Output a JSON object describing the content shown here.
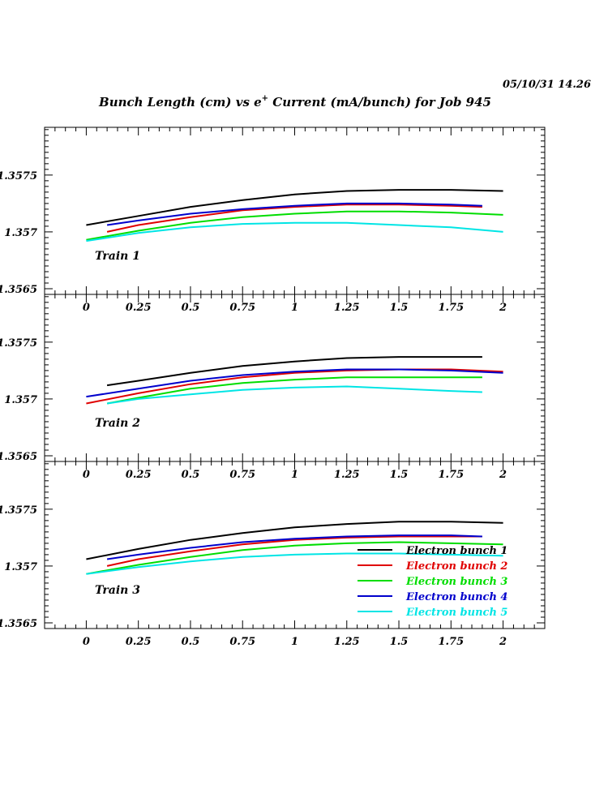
{
  "header": {
    "timestamp": "05/10/31   14.26",
    "title_part1": "Bunch Length (cm) vs e",
    "title_sup": "+",
    "title_part2": " Current (mA/bunch) for Job 945"
  },
  "chart_data": {
    "type": "line",
    "title": "Bunch Length (cm) vs e+ Current (mA/bunch) for Job 945",
    "xlabel": "",
    "ylabel": "",
    "xlim": [
      -0.2,
      2.2
    ],
    "ylim": [
      1.35645,
      1.35792
    ],
    "x_ticks": [
      0,
      0.25,
      0.5,
      0.75,
      1,
      1.25,
      1.5,
      1.75,
      2
    ],
    "x_tick_labels": [
      "0",
      "0.25",
      "0.5",
      "0.75",
      "1",
      "1.25",
      "1.5",
      "1.75",
      "2"
    ],
    "y_ticks": [
      1.3565,
      1.357,
      1.3575
    ],
    "y_tick_labels": [
      "1.3565",
      "1.357",
      "1.3575"
    ],
    "grid": false,
    "legend_placement": "bottom-right of lowest panel",
    "colors": [
      "#000000",
      "#e00000",
      "#00dd00",
      "#0000cc",
      "#00e5e5"
    ],
    "legend": [
      "Electron bunch 1",
      "Electron bunch 2",
      "Electron bunch 3",
      "Electron bunch 4",
      "Electron bunch 5"
    ],
    "panels": [
      {
        "label": "Train 1",
        "series": [
          {
            "name": "Electron bunch 1",
            "x": [
              0,
              0.25,
              0.5,
              0.75,
              1,
              1.25,
              1.5,
              1.75,
              2
            ],
            "y": [
              1.35706,
              1.35714,
              1.35722,
              1.35728,
              1.35733,
              1.35736,
              1.35737,
              1.35737,
              1.35736
            ]
          },
          {
            "name": "Electron bunch 2",
            "x": [
              0.1,
              0.25,
              0.5,
              0.75,
              1,
              1.25,
              1.5,
              1.75,
              1.9
            ],
            "y": [
              1.357,
              1.35706,
              1.35713,
              1.35719,
              1.35722,
              1.35724,
              1.35724,
              1.35723,
              1.35722
            ]
          },
          {
            "name": "Electron bunch 3",
            "x": [
              0,
              0.25,
              0.5,
              0.75,
              1,
              1.25,
              1.5,
              1.75,
              2
            ],
            "y": [
              1.35693,
              1.35701,
              1.35708,
              1.35713,
              1.35716,
              1.35718,
              1.35718,
              1.35717,
              1.35715
            ]
          },
          {
            "name": "Electron bunch 4",
            "x": [
              0.1,
              0.25,
              0.5,
              0.75,
              1,
              1.25,
              1.5,
              1.75,
              1.9
            ],
            "y": [
              1.35706,
              1.3571,
              1.35716,
              1.3572,
              1.35723,
              1.35725,
              1.35725,
              1.35724,
              1.35723
            ]
          },
          {
            "name": "Electron bunch 5",
            "x": [
              0,
              0.25,
              0.5,
              0.75,
              1,
              1.25,
              1.5,
              1.75,
              2
            ],
            "y": [
              1.35692,
              1.35699,
              1.35704,
              1.35707,
              1.35708,
              1.35708,
              1.35706,
              1.35704,
              1.357
            ]
          }
        ]
      },
      {
        "label": "Train 2",
        "series": [
          {
            "name": "Electron bunch 1",
            "x": [
              0.1,
              0.25,
              0.5,
              0.75,
              1,
              1.25,
              1.5,
              1.75,
              1.9
            ],
            "y": [
              1.35712,
              1.35716,
              1.35723,
              1.35729,
              1.35733,
              1.35736,
              1.35737,
              1.35737,
              1.35737
            ]
          },
          {
            "name": "Electron bunch 2",
            "x": [
              0,
              0.25,
              0.5,
              0.75,
              1,
              1.25,
              1.5,
              1.75,
              2
            ],
            "y": [
              1.35696,
              1.35705,
              1.35713,
              1.35719,
              1.35723,
              1.35725,
              1.35726,
              1.35726,
              1.35724
            ]
          },
          {
            "name": "Electron bunch 3",
            "x": [
              0.1,
              0.25,
              0.5,
              0.75,
              1,
              1.25,
              1.5,
              1.75,
              1.9
            ],
            "y": [
              1.35696,
              1.35701,
              1.35709,
              1.35714,
              1.35717,
              1.35719,
              1.35719,
              1.35719,
              1.35719
            ]
          },
          {
            "name": "Electron bunch 4",
            "x": [
              0,
              0.25,
              0.5,
              0.75,
              1,
              1.25,
              1.5,
              1.75,
              2
            ],
            "y": [
              1.35702,
              1.35709,
              1.35716,
              1.35721,
              1.35724,
              1.35726,
              1.35726,
              1.35725,
              1.35723
            ]
          },
          {
            "name": "Electron bunch 5",
            "x": [
              0.1,
              0.25,
              0.5,
              0.75,
              1,
              1.25,
              1.5,
              1.75,
              1.9
            ],
            "y": [
              1.35696,
              1.357,
              1.35704,
              1.35708,
              1.3571,
              1.35711,
              1.35709,
              1.35707,
              1.35706
            ]
          }
        ]
      },
      {
        "label": "Train 3",
        "series": [
          {
            "name": "Electron bunch 1",
            "x": [
              0,
              0.25,
              0.5,
              0.75,
              1,
              1.25,
              1.5,
              1.75,
              2
            ],
            "y": [
              1.35706,
              1.35715,
              1.35723,
              1.35729,
              1.35734,
              1.35737,
              1.35739,
              1.35739,
              1.35738
            ]
          },
          {
            "name": "Electron bunch 2",
            "x": [
              0.1,
              0.25,
              0.5,
              0.75,
              1,
              1.25,
              1.5,
              1.75,
              1.9
            ],
            "y": [
              1.357,
              1.35706,
              1.35713,
              1.35719,
              1.35723,
              1.35725,
              1.35726,
              1.35726,
              1.35726
            ]
          },
          {
            "name": "Electron bunch 3",
            "x": [
              0,
              0.25,
              0.5,
              0.75,
              1,
              1.25,
              1.5,
              1.75,
              2
            ],
            "y": [
              1.35693,
              1.35701,
              1.35708,
              1.35714,
              1.35718,
              1.3572,
              1.35721,
              1.3572,
              1.35719
            ]
          },
          {
            "name": "Electron bunch 4",
            "x": [
              0.1,
              0.25,
              0.5,
              0.75,
              1,
              1.25,
              1.5,
              1.75,
              1.9
            ],
            "y": [
              1.35706,
              1.3571,
              1.35716,
              1.35721,
              1.35724,
              1.35726,
              1.35727,
              1.35727,
              1.35726
            ]
          },
          {
            "name": "Electron bunch 5",
            "x": [
              0,
              0.25,
              0.5,
              0.75,
              1,
              1.25,
              1.5,
              1.75,
              2
            ],
            "y": [
              1.35693,
              1.35699,
              1.35704,
              1.35708,
              1.3571,
              1.35711,
              1.35711,
              1.3571,
              1.35709
            ]
          }
        ]
      }
    ]
  }
}
